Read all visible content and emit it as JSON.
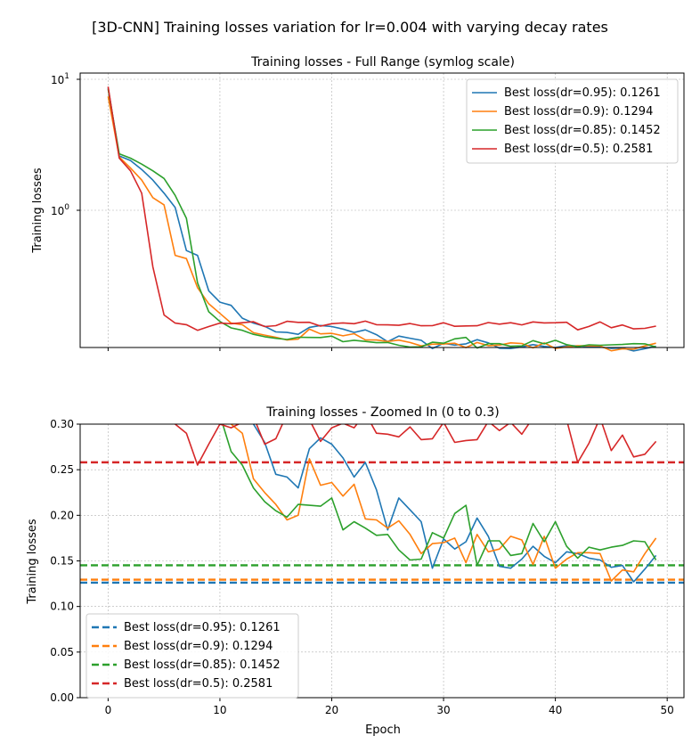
{
  "suptitle": "[3D-CNN] Training losses variation for lr=0.004 with varying decay rates",
  "colors": {
    "blue": "#1f77b4",
    "orange": "#ff7f0e",
    "green": "#2ca02c",
    "red": "#d62728",
    "grid": "#b0b0b0"
  },
  "chart_data": [
    {
      "type": "line",
      "title": "Training losses - Full Range (symlog scale)",
      "xlabel": "",
      "ylabel": "Training losses",
      "yscale": "symlog",
      "ytick_labels": [
        "10^1",
        "10^0"
      ],
      "xlim": [
        -2.5,
        51.5
      ],
      "grid": true,
      "legend_position": "upper right",
      "legend": [
        "Best loss(dr=0.95): 0.1261",
        "Best loss(dr=0.9): 0.1294",
        "Best loss(dr=0.85): 0.1452",
        "Best loss(dr=0.5): 0.2581"
      ]
    },
    {
      "type": "line",
      "title": "Training losses - Zoomed In (0 to 0.3)",
      "xlabel": "Epoch",
      "ylabel": "Training losses",
      "ylim": [
        0,
        0.3
      ],
      "xlim": [
        -2.5,
        51.5
      ],
      "xticks": [
        0,
        10,
        20,
        30,
        40,
        50
      ],
      "yticks": [
        "0.00",
        "0.05",
        "0.10",
        "0.15",
        "0.20",
        "0.25",
        "0.30"
      ],
      "grid": true,
      "legend_position": "lower left",
      "hlines": [
        {
          "name": "Best loss(dr=0.95): 0.1261",
          "y": 0.1261,
          "color": "#1f77b4"
        },
        {
          "name": "Best loss(dr=0.9): 0.1294",
          "y": 0.1294,
          "color": "#ff7f0e"
        },
        {
          "name": "Best loss(dr=0.85): 0.1452",
          "y": 0.1452,
          "color": "#2ca02c"
        },
        {
          "name": "Best loss(dr=0.5): 0.2581",
          "y": 0.2581,
          "color": "#d62728"
        }
      ]
    }
  ],
  "series": [
    {
      "name": "Best loss(dr=0.95): 0.1261",
      "color": "#1f77b4",
      "values": [
        8.6,
        2.6,
        2.4,
        2.05,
        1.7,
        1.35,
        1.05,
        0.75,
        0.72,
        0.5,
        0.43,
        0.41,
        0.33,
        0.3,
        0.28,
        0.245,
        0.242,
        0.23,
        0.273,
        0.285,
        0.278,
        0.263,
        0.242,
        0.258,
        0.228,
        0.184,
        0.219,
        0.206,
        0.193,
        0.142,
        0.174,
        0.163,
        0.171,
        0.197,
        0.177,
        0.144,
        0.142,
        0.152,
        0.166,
        0.155,
        0.148,
        0.16,
        0.158,
        0.153,
        0.151,
        0.143,
        0.145,
        0.127,
        0.141,
        0.156
      ]
    },
    {
      "name": "Best loss(dr=0.9): 0.1294",
      "color": "#ff7f0e",
      "values": [
        7.4,
        2.55,
        2.1,
        1.7,
        1.25,
        1.1,
        0.72,
        0.7,
        0.52,
        0.42,
        0.36,
        0.3,
        0.29,
        0.24,
        0.225,
        0.212,
        0.195,
        0.2,
        0.262,
        0.233,
        0.236,
        0.221,
        0.234,
        0.196,
        0.195,
        0.186,
        0.194,
        0.179,
        0.158,
        0.169,
        0.17,
        0.175,
        0.148,
        0.179,
        0.16,
        0.163,
        0.177,
        0.173,
        0.146,
        0.177,
        0.142,
        0.152,
        0.159,
        0.159,
        0.158,
        0.128,
        0.14,
        0.138,
        0.158,
        0.175
      ]
    },
    {
      "name": "Best loss(dr=0.85): 0.1452",
      "color": "#2ca02c",
      "values": [
        8.4,
        2.7,
        2.5,
        2.25,
        2.0,
        1.75,
        1.3,
        0.95,
        0.55,
        0.37,
        0.31,
        0.27,
        0.255,
        0.23,
        0.215,
        0.205,
        0.198,
        0.212,
        0.211,
        0.21,
        0.219,
        0.184,
        0.193,
        0.186,
        0.178,
        0.179,
        0.162,
        0.151,
        0.152,
        0.181,
        0.175,
        0.202,
        0.211,
        0.145,
        0.172,
        0.172,
        0.156,
        0.158,
        0.191,
        0.171,
        0.193,
        0.166,
        0.153,
        0.165,
        0.162,
        0.165,
        0.167,
        0.172,
        0.171,
        0.151
      ]
    },
    {
      "name": "Best loss(dr=0.5): 0.2581",
      "color": "#d62728",
      "values": [
        8.8,
        2.5,
        2.0,
        1.35,
        0.65,
        0.35,
        0.3,
        0.29,
        0.255,
        0.278,
        0.3,
        0.296,
        0.302,
        0.308,
        0.278,
        0.284,
        0.311,
        0.304,
        0.305,
        0.281,
        0.296,
        0.301,
        0.296,
        0.312,
        0.29,
        0.289,
        0.286,
        0.297,
        0.283,
        0.284,
        0.302,
        0.28,
        0.282,
        0.283,
        0.303,
        0.293,
        0.302,
        0.289,
        0.307,
        0.301,
        0.302,
        0.305,
        0.258,
        0.279,
        0.307,
        0.271,
        0.288,
        0.264,
        0.267,
        0.281
      ]
    }
  ]
}
